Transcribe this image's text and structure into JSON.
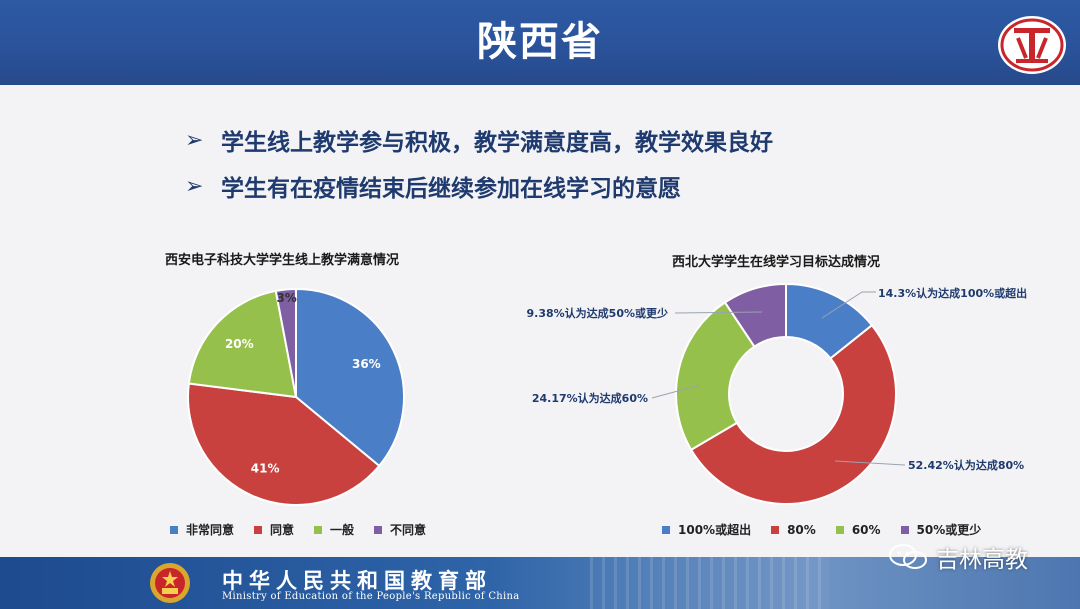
{
  "header": {
    "title": "陕西省"
  },
  "bullets": [
    "学生线上教学参与积极，教学满意度高，教学效果良好",
    "学生有在疫情结束后继续参加在线学习的意愿"
  ],
  "bullet_marker": "➢",
  "chart_data": [
    {
      "type": "pie",
      "title": "西安电子科技大学学生线上教学满意情况",
      "categories": [
        "非常同意",
        "同意",
        "一般",
        "不同意"
      ],
      "values": [
        36,
        41,
        20,
        3
      ],
      "labels": [
        "36%",
        "41%",
        "20%",
        "3%"
      ],
      "colors": [
        "#4a7ec6",
        "#c9413e",
        "#95c04b",
        "#7f5ea4"
      ],
      "legend": "bottom"
    },
    {
      "type": "pie",
      "subtype": "donut",
      "title": "西北大学学生在线学习目标达成情况",
      "categories": [
        "100%或超出",
        "80%",
        "60%",
        "50%或更少"
      ],
      "values": [
        14.3,
        52.42,
        24.17,
        9.38
      ],
      "labels": [
        "14.3%认为达成100%或超出",
        "52.42%认为达成80%",
        "24.17%认为达成60%",
        "9.38%认为达成50%或更少"
      ],
      "colors": [
        "#4a7ec6",
        "#c9413e",
        "#95c04b",
        "#7f5ea4"
      ],
      "legend": "bottom"
    }
  ],
  "footer": {
    "ministry_cn": "中华人民共和国教育部",
    "ministry_en": "Ministry of Education of the People's Republic of China"
  },
  "watermark": {
    "text": "吉林高教",
    "icon": "wechat-icon"
  }
}
